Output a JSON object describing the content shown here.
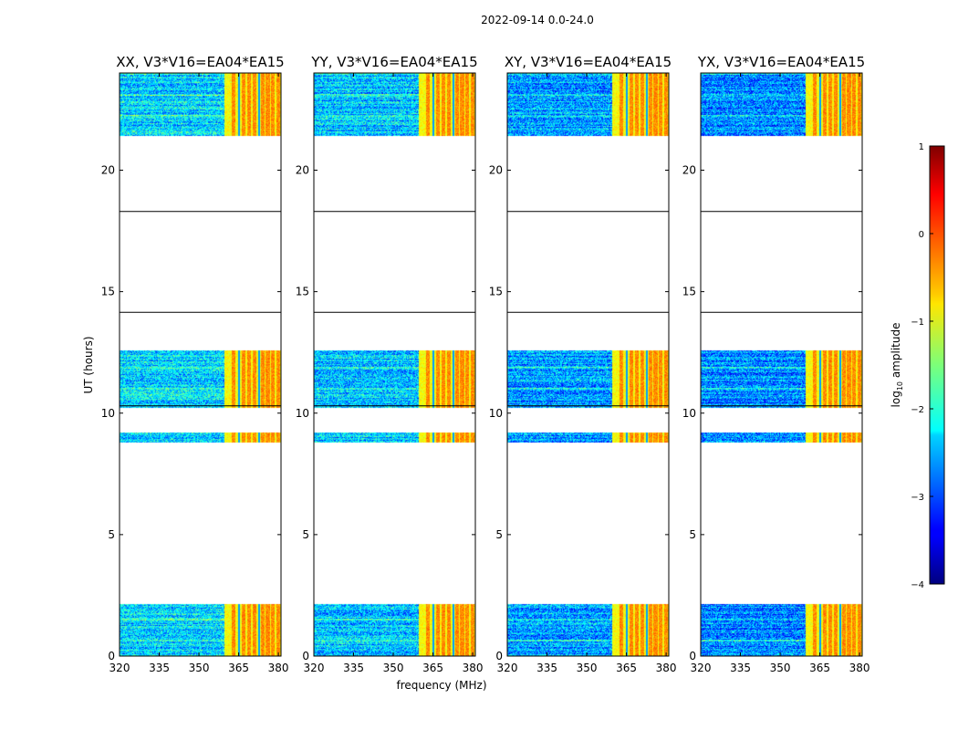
{
  "chart_data": {
    "type": "heatmap",
    "suptitle": "2022-09-14 0.0-24.0",
    "xlabel": "frequency (MHz)",
    "ylabel": "UT (hours)",
    "xlim": [
      320,
      381
    ],
    "ylim": [
      0,
      24
    ],
    "xticks": [
      "320",
      "335",
      "350",
      "365",
      "380"
    ],
    "xtick_values": [
      320,
      335,
      350,
      365,
      380
    ],
    "yticks": [
      "0",
      "5",
      "10",
      "15",
      "20"
    ],
    "ytick_values": [
      0,
      5,
      10,
      15,
      20
    ],
    "panels": [
      {
        "title": "XX, V3*V16=EA04*EA15",
        "rfi_start_mhz": 359.5,
        "base_level": -2.3
      },
      {
        "title": "YY, V3*V16=EA04*EA15",
        "rfi_start_mhz": 359.5,
        "base_level": -2.4
      },
      {
        "title": "XY, V3*V16=EA04*EA15",
        "rfi_start_mhz": 359.5,
        "base_level": -2.6
      },
      {
        "title": "YX, V3*V16=EA04*EA15",
        "rfi_start_mhz": 359.5,
        "base_level": -2.7
      }
    ],
    "data_time_ranges_hours": [
      [
        0.0,
        2.15
      ],
      [
        8.8,
        9.2
      ],
      [
        10.2,
        12.6
      ],
      [
        21.4,
        24.0
      ]
    ],
    "flag_lines_hours": [
      14.15,
      18.3,
      10.3
    ],
    "rfi_channel_centers_mhz": [
      363,
      367,
      369,
      371,
      374,
      376,
      378,
      380
    ],
    "colorbar": {
      "label": "log",
      "label_sub": "10",
      "label_tail": " amplitude",
      "range": [
        -4,
        1
      ],
      "tick_values": [
        1,
        0,
        -1,
        -2,
        -3,
        -4
      ],
      "ticks": [
        "1",
        "0",
        "−1",
        "−2",
        "−3",
        "−4"
      ]
    }
  }
}
